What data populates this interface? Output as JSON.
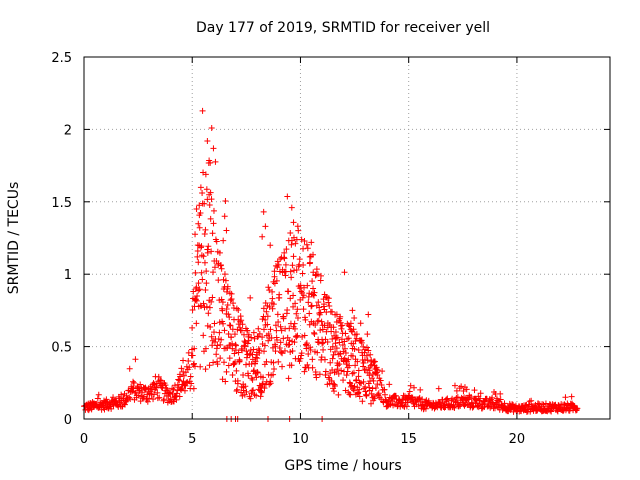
{
  "chart_data": {
    "type": "scatter",
    "title": "Day 177 of 2019, SRMTID for receiver yell",
    "xlabel": "GPS time / hours",
    "ylabel": "SRMTID / TECUs",
    "xlim": [
      0,
      24.3
    ],
    "ylim": [
      0,
      2.5
    ],
    "xticks": [
      0,
      5,
      10,
      15,
      20
    ],
    "xtick_labels": [
      "0",
      "5",
      "10",
      "15",
      "20"
    ],
    "yticks": [
      0,
      0.5,
      1,
      1.5,
      2,
      2.5
    ],
    "ytick_labels": [
      "0",
      "0.5",
      "1",
      "1.5",
      "2",
      "2.5"
    ],
    "grid": true,
    "marker": "+",
    "series_color": "#ff0000",
    "series": [
      {
        "name": "SRMTID",
        "profile_x": [
          0,
          1,
          1.8,
          2.2,
          3,
          3.3,
          4,
          4.8,
          5.1,
          5.4,
          5.8,
          6.3,
          6.7,
          7.2,
          7.7,
          8.3,
          8.8,
          9.3,
          9.6,
          10.2,
          10.6,
          11,
          11.5,
          12,
          12.5,
          13,
          13.4,
          14,
          15.2,
          16,
          17.5,
          19,
          20,
          21,
          22.8
        ],
        "profile_y": [
          0.08,
          0.1,
          0.12,
          0.2,
          0.17,
          0.22,
          0.16,
          0.28,
          0.7,
          1.05,
          1.2,
          0.8,
          0.65,
          0.55,
          0.4,
          0.55,
          0.75,
          0.85,
          1.0,
          0.9,
          0.85,
          0.7,
          0.55,
          0.5,
          0.45,
          0.38,
          0.3,
          0.12,
          0.12,
          0.09,
          0.12,
          0.1,
          0.07,
          0.08,
          0.08
        ],
        "peaks": [
          {
            "x": 5.9,
            "y": 2.01
          },
          {
            "x": 5.7,
            "y": 1.92
          },
          {
            "x": 5.4,
            "y": 1.6
          },
          {
            "x": 5.2,
            "y": 1.45
          },
          {
            "x": 6.5,
            "y": 1.4
          },
          {
            "x": 8.3,
            "y": 1.43
          },
          {
            "x": 9.6,
            "y": 1.46
          },
          {
            "x": 10.5,
            "y": 1.22
          },
          {
            "x": 11.6,
            "y": 0.72
          },
          {
            "x": 12.4,
            "y": 0.75
          },
          {
            "x": 4.5,
            "y": 0.35
          },
          {
            "x": 17.6,
            "y": 0.22
          }
        ],
        "zero_points_x": [
          6.6,
          6.8,
          7.0,
          7.1,
          8.5,
          9.5,
          11.0
        ]
      }
    ]
  }
}
